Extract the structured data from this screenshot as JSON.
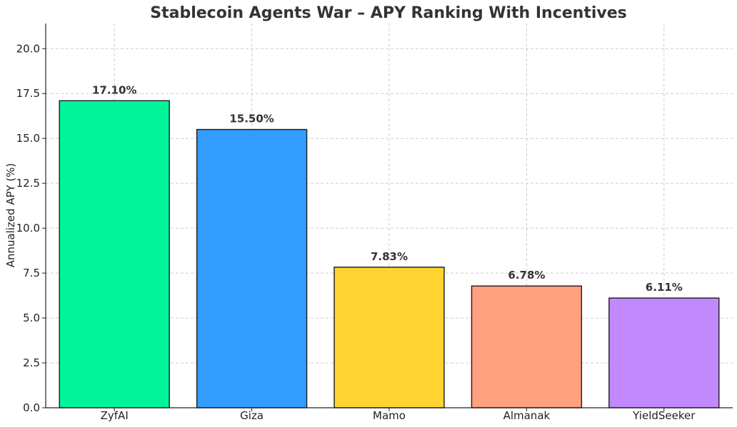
{
  "chart_data": {
    "type": "bar",
    "title": "Stablecoin Agents War – APY Ranking With Incentives",
    "xlabel": "",
    "ylabel": "Annualized APY (%)",
    "ylim": [
      0,
      21.4
    ],
    "yticks": [
      0,
      2.5,
      5,
      7.5,
      10,
      12.5,
      15,
      17.5,
      20
    ],
    "ytick_labels": [
      "0.0",
      "2.5",
      "5.0",
      "7.5",
      "10.0",
      "12.5",
      "15.0",
      "17.5",
      "20.0"
    ],
    "categories": [
      "ZyfAI",
      "Giza",
      "Mamo",
      "Almanak",
      "YieldSeeker"
    ],
    "values": [
      17.1,
      15.5,
      7.83,
      6.78,
      6.11
    ],
    "data_labels": [
      "17.10%",
      "15.50%",
      "7.83%",
      "6.78%",
      "6.11%"
    ],
    "colors": [
      "#00f59b",
      "#339cff",
      "#ffd431",
      "#ffa07f",
      "#c289ff"
    ],
    "grid": true
  }
}
